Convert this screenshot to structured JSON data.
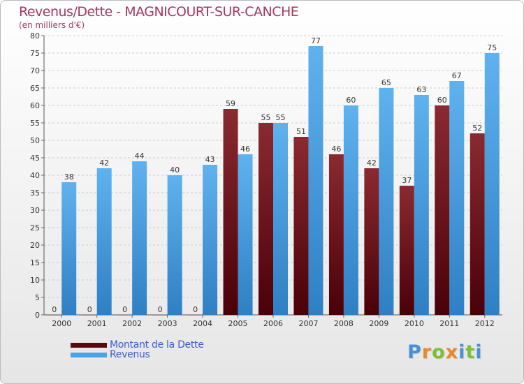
{
  "chart_data": {
    "type": "bar",
    "title": "Revenus/Dette - MAGNICOURT-SUR-CANCHE",
    "subtitle": "(en milliers d'€)",
    "xlabel": "",
    "ylabel": "",
    "ylim": [
      0,
      80
    ],
    "yticks": [
      0,
      5,
      10,
      15,
      20,
      25,
      30,
      35,
      40,
      45,
      50,
      55,
      60,
      65,
      70,
      75,
      80
    ],
    "grid": true,
    "categories": [
      "2000",
      "2001",
      "2002",
      "2003",
      "2004",
      "2005",
      "2006",
      "2007",
      "2008",
      "2009",
      "2010",
      "2011",
      "2012"
    ],
    "series": [
      {
        "name": "Montant de la Dette",
        "color": "#7a1a1f",
        "values": [
          0,
          0,
          0,
          0,
          0,
          59,
          55,
          51,
          46,
          42,
          37,
          60,
          52
        ]
      },
      {
        "name": "Revenus",
        "color": "#4aa3e6",
        "values": [
          38,
          42,
          44,
          40,
          43,
          46,
          55,
          77,
          60,
          65,
          63,
          67,
          75
        ]
      }
    ]
  },
  "legend": {
    "debt_label": "Montant de la Dette",
    "revenue_label": "Revenus"
  },
  "logo": {
    "letters": [
      "P",
      "r",
      "o",
      "x",
      "i",
      "t",
      "i"
    ],
    "colors": [
      "#4a90d9",
      "#e8882a",
      "#7cbf3a",
      "#e8882a",
      "#4a90d9",
      "#7cbf3a",
      "#4a90d9"
    ]
  }
}
